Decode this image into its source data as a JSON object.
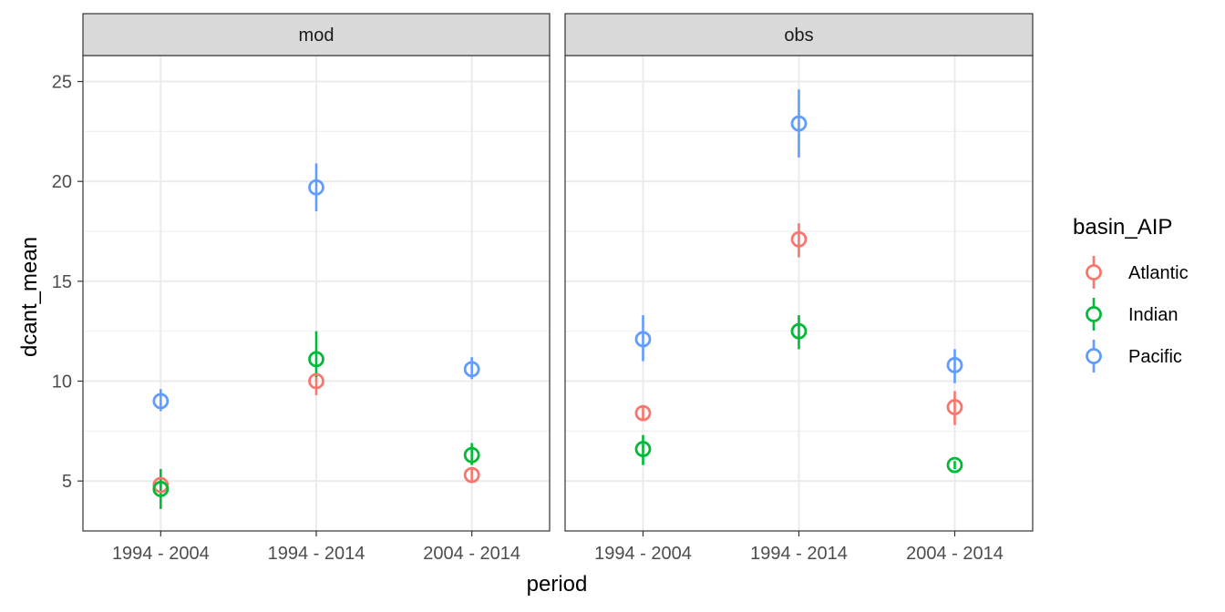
{
  "chart_data": {
    "type": "scatter",
    "xlabel": "period",
    "ylabel": "dcant_mean",
    "ylim": [
      2.5,
      26.3
    ],
    "yticks": [
      5,
      10,
      15,
      20,
      25
    ],
    "categories": [
      "1994 - 2004",
      "1994 - 2014",
      "2004 - 2014"
    ],
    "grid": true,
    "legend": {
      "title": "basin_AIP",
      "position": "right"
    },
    "series_colors": {
      "Atlantic": "#F8766D",
      "Indian": "#00BA38",
      "Pacific": "#619CFF"
    },
    "facets": [
      {
        "label": "mod",
        "series": [
          {
            "name": "Atlantic",
            "values": [
              4.8,
              10.0,
              5.3
            ],
            "err_low": [
              4.5,
              9.3,
              5.0
            ],
            "err_high": [
              5.1,
              10.4,
              5.6
            ]
          },
          {
            "name": "Indian",
            "values": [
              4.6,
              11.1,
              6.3
            ],
            "err_low": [
              3.6,
              10.2,
              5.8
            ],
            "err_high": [
              5.6,
              12.5,
              6.9
            ]
          },
          {
            "name": "Pacific",
            "values": [
              9.0,
              19.7,
              10.6
            ],
            "err_low": [
              8.5,
              18.5,
              10.1
            ],
            "err_high": [
              9.6,
              20.9,
              11.2
            ]
          }
        ]
      },
      {
        "label": "obs",
        "series": [
          {
            "name": "Atlantic",
            "values": [
              8.4,
              17.1,
              8.7
            ],
            "err_low": [
              8.0,
              16.2,
              7.8
            ],
            "err_high": [
              8.8,
              17.9,
              9.5
            ]
          },
          {
            "name": "Indian",
            "values": [
              6.6,
              12.5,
              5.8
            ],
            "err_low": [
              5.8,
              11.6,
              5.6
            ],
            "err_high": [
              7.3,
              13.3,
              6.0
            ]
          },
          {
            "name": "Pacific",
            "values": [
              12.1,
              22.9,
              10.8
            ],
            "err_low": [
              11.0,
              21.2,
              9.9
            ],
            "err_high": [
              13.3,
              24.6,
              11.6
            ]
          }
        ]
      }
    ]
  }
}
